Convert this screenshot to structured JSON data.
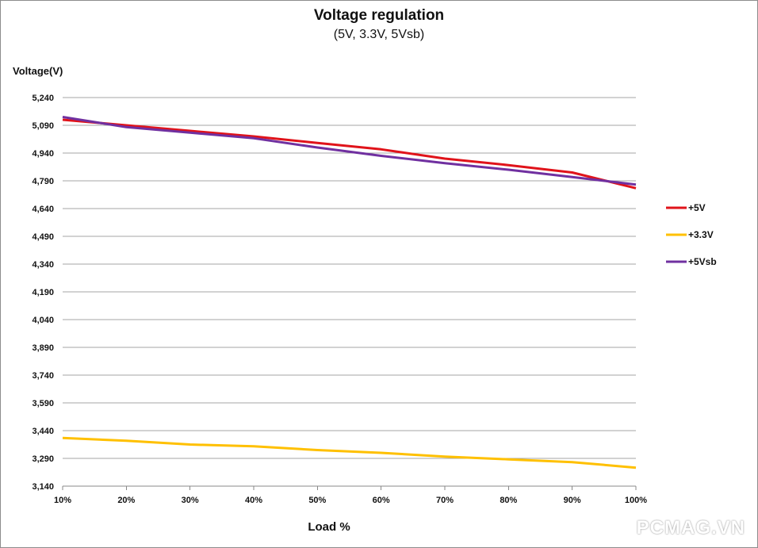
{
  "chart_data": {
    "type": "line",
    "title": "Voltage regulation",
    "subtitle": "(5V, 3.3V, 5Vsb)",
    "xlabel": "Load %",
    "ylabel": "Voltage(V)",
    "categories": [
      "10%",
      "20%",
      "30%",
      "40%",
      "50%",
      "60%",
      "70%",
      "80%",
      "90%",
      "100%"
    ],
    "yticks": [
      "3,140",
      "3,290",
      "3,440",
      "3,590",
      "3,740",
      "3,890",
      "4,040",
      "4,190",
      "4,340",
      "4,490",
      "4,640",
      "4,790",
      "4,940",
      "5,090",
      "5,240"
    ],
    "ylim": [
      3.14,
      5.24
    ],
    "grid": true,
    "legend_position": "right",
    "series": [
      {
        "name": "+5V",
        "color": "#e0131a",
        "values": [
          5.12,
          5.09,
          5.06,
          5.03,
          4.995,
          4.96,
          4.91,
          4.875,
          4.835,
          4.75
        ]
      },
      {
        "name": "+3.3V",
        "color": "#ffc000",
        "values": [
          3.4,
          3.385,
          3.365,
          3.355,
          3.335,
          3.32,
          3.3,
          3.285,
          3.27,
          3.24
        ]
      },
      {
        "name": "+5Vsb",
        "color": "#7030a0",
        "values": [
          5.135,
          5.08,
          5.05,
          5.02,
          4.97,
          4.925,
          4.885,
          4.85,
          4.81,
          4.77
        ]
      }
    ]
  },
  "watermark": "PCMAG.VN"
}
